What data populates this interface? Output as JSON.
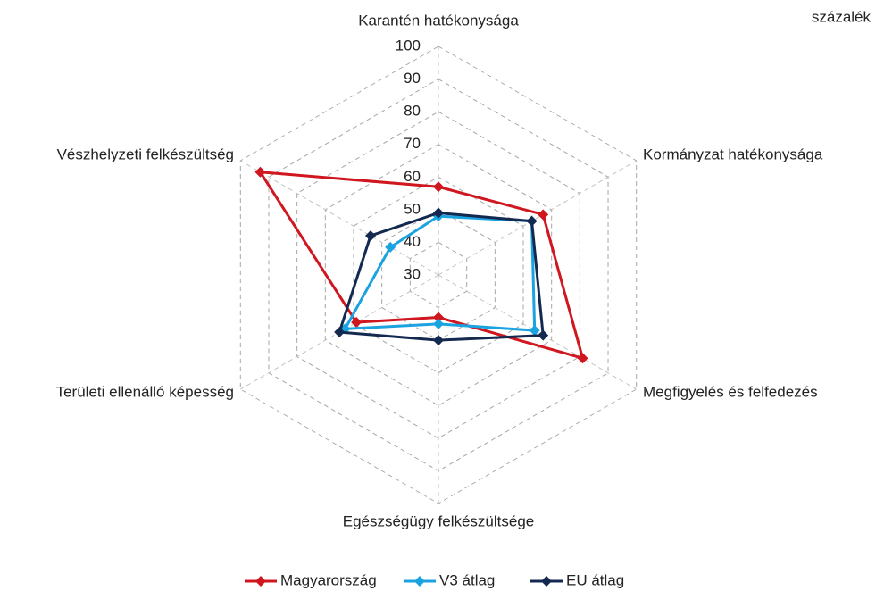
{
  "chart_data": {
    "type": "radar",
    "unit_label": "százalék",
    "categories": [
      "Karantén hatékonysága",
      "Kormányzat hatékonysága",
      "Megfigyelés és felfedezés",
      "Egészségügy felkészültsége",
      "Területi ellenálló képesség",
      "Vészhelyzeti felkészültség"
    ],
    "series": [
      {
        "name": "Magyarország",
        "color": "#d0161e",
        "values": [
          57,
          67,
          81,
          43,
          59,
          93
        ]
      },
      {
        "name": "V3 átlag",
        "color": "#1aa3e0",
        "values": [
          48,
          63,
          64,
          45,
          63,
          47
        ]
      },
      {
        "name": "EU átlag",
        "color": "#13294f",
        "values": [
          49,
          63,
          67,
          50,
          65,
          54
        ]
      }
    ],
    "ylim": [
      30,
      100
    ],
    "yticks": [
      30,
      40,
      50,
      60,
      70,
      80,
      90,
      100
    ],
    "grid": true,
    "legend": "bottom"
  }
}
